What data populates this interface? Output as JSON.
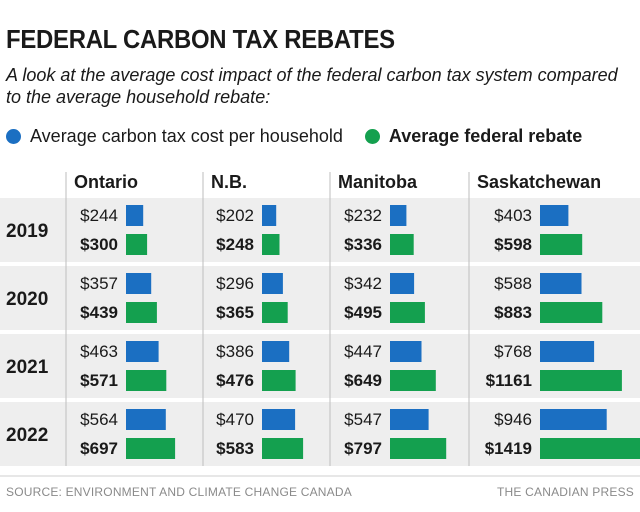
{
  "header": {
    "title": "FEDERAL CARBON TAX REBATES",
    "subtitle": "A look at the average cost impact of the federal carbon tax system compared to the average household rebate:"
  },
  "legend": {
    "cost_label": "Average carbon tax cost per household",
    "rebate_label": "Average federal rebate",
    "cost_color": "#1b6fc2",
    "rebate_color": "#14a04f"
  },
  "chart_data": {
    "type": "bar",
    "title": "FEDERAL CARBON TAX REBATES",
    "subtitle": "A look at the average cost impact of the federal carbon tax system compared to the average household rebate:",
    "value_prefix": "$",
    "provinces": [
      "Ontario",
      "N.B.",
      "Manitoba",
      "Saskatchewan"
    ],
    "years": [
      "2019",
      "2020",
      "2021",
      "2022"
    ],
    "series": [
      {
        "name": "Average carbon tax cost per household",
        "color": "#1b6fc2",
        "values": {
          "Ontario": [
            244,
            357,
            463,
            564
          ],
          "N.B.": [
            202,
            296,
            386,
            470
          ],
          "Manitoba": [
            232,
            342,
            447,
            547
          ],
          "Saskatchewan": [
            403,
            588,
            768,
            946
          ]
        }
      },
      {
        "name": "Average federal rebate",
        "color": "#14a04f",
        "values": {
          "Ontario": [
            300,
            439,
            571,
            697
          ],
          "N.B.": [
            248,
            365,
            476,
            583
          ],
          "Manitoba": [
            336,
            495,
            649,
            797
          ],
          "Saskatchewan": [
            598,
            883,
            1161,
            1419
          ]
        }
      }
    ]
  },
  "footer": {
    "source": "SOURCE: ENVIRONMENT AND CLIMATE CHANGE CANADA",
    "credit": "THE CANADIAN PRESS"
  }
}
